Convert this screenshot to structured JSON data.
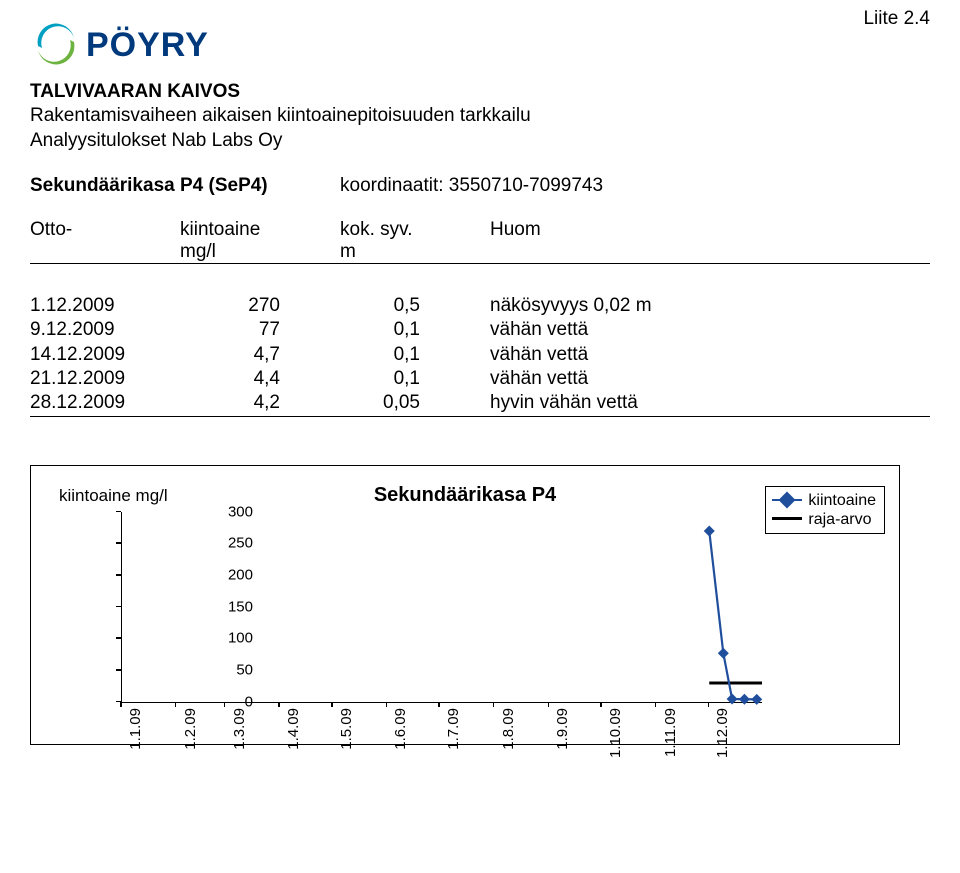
{
  "attachment_label": "Liite 2.4",
  "logo": {
    "text": "PÖYRY",
    "swirl_top": "#00a0c2",
    "swirl_bottom": "#6db33f",
    "text_color": "#003a7d"
  },
  "header": {
    "line1": "TALVIVAARAN KAIVOS",
    "line2": "Rakentamisvaiheen aikaisen kiintoainepitoisuuden tarkkailu",
    "line3": "Analyysitulokset Nab Labs Oy"
  },
  "section": {
    "title": "Sekundäärikasa P4 (SeP4)",
    "coord": "koordinaatit: 3550710-7099743"
  },
  "meta": {
    "col1a": "Otto-",
    "col2a": "kiintoaine",
    "col3a": "kok. syv.",
    "col4a": "Huom",
    "col2b": "mg/l",
    "col3b": "m"
  },
  "rows": [
    {
      "date": "1.12.2009",
      "val": "270",
      "depth": "0,5",
      "note": "näkösyvyys 0,02 m"
    },
    {
      "date": "9.12.2009",
      "val": "77",
      "depth": "0,1",
      "note": "vähän vettä"
    },
    {
      "date": "14.12.2009",
      "val": "4,7",
      "depth": "0,1",
      "note": "vähän vettä"
    },
    {
      "date": "21.12.2009",
      "val": "4,4",
      "depth": "0,1",
      "note": "vähän vettä"
    },
    {
      "date": "28.12.2009",
      "val": "4,2",
      "depth": "0,05",
      "note": "hyvin vähän vettä"
    }
  ],
  "chart": {
    "title": "Sekundäärikasa P4",
    "y_axis_label": "kiintoaine mg/l",
    "legend": {
      "series": "kiintoaine",
      "limit": "raja-arvo"
    },
    "series_color": "#1f4e9c",
    "limit_color": "#000000",
    "background": "#ffffff",
    "y_ticks": [
      0,
      50,
      100,
      150,
      200,
      250,
      300
    ],
    "y_max": 300,
    "x_labels": [
      "1.1.09",
      "1.2.09",
      "1.3.09",
      "1.4.09",
      "1.5.09",
      "1.6.09",
      "1.7.09",
      "1.8.09",
      "1.9.09",
      "1.10.09",
      "1.11.09",
      "1.12.09"
    ],
    "x_max_days": 364,
    "data_points_days": [
      334,
      342,
      347,
      354,
      361
    ],
    "data_points_vals": [
      270,
      77,
      4.7,
      4.4,
      4.2
    ],
    "limit_line": {
      "y": 30,
      "x_start_days": 334,
      "x_end_days": 364
    }
  }
}
